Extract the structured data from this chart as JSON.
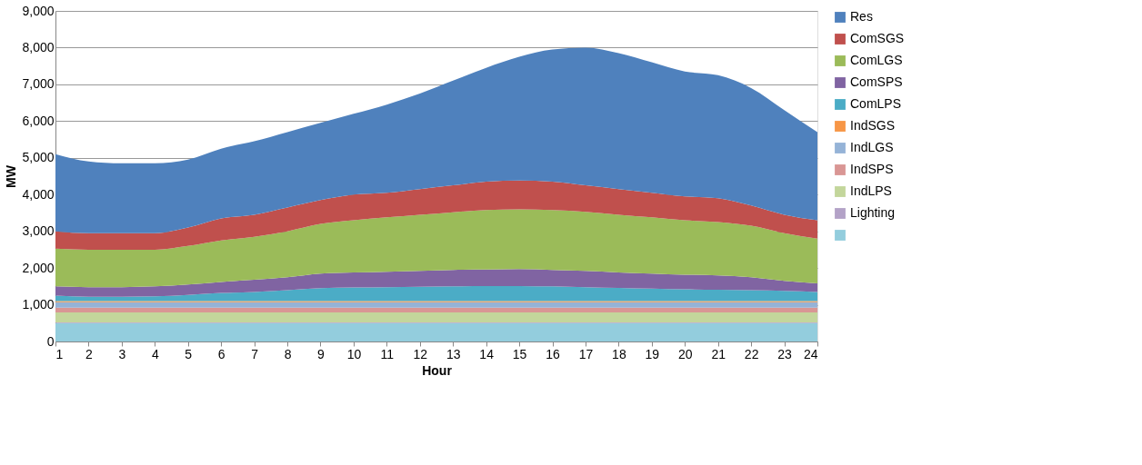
{
  "chart_data": {
    "type": "area",
    "stacked": true,
    "xlabel": "Hour",
    "ylabel": "MW",
    "x": [
      1,
      2,
      3,
      4,
      5,
      6,
      7,
      8,
      9,
      10,
      11,
      12,
      13,
      14,
      15,
      16,
      17,
      18,
      19,
      20,
      21,
      22,
      23,
      24
    ],
    "xlim": [
      1,
      24
    ],
    "xticks": [
      1,
      2,
      3,
      4,
      5,
      6,
      7,
      8,
      9,
      10,
      11,
      12,
      13,
      14,
      15,
      16,
      17,
      18,
      19,
      20,
      21,
      22,
      23,
      24
    ],
    "ylim": [
      0,
      9000
    ],
    "yticks": [
      0,
      {
        "value": 1000,
        "label": "1,000"
      },
      {
        "value": 2000,
        "label": "2,000"
      },
      {
        "value": 3000,
        "label": "3,000"
      },
      {
        "value": 4000,
        "label": "4,000"
      },
      {
        "value": 5000,
        "label": "5,000"
      },
      {
        "value": 6000,
        "label": "6,000"
      },
      {
        "value": 7000,
        "label": "7,000"
      },
      {
        "value": 8000,
        "label": "8,000"
      },
      {
        "value": 9000,
        "label": "9,000"
      }
    ],
    "grid": "y",
    "legend": "right",
    "series": [
      {
        "color": "#93cddd",
        "values": [
          500,
          500,
          500,
          500,
          500,
          500,
          500,
          500,
          500,
          500,
          500,
          500,
          500,
          500,
          500,
          500,
          500,
          500,
          500,
          500,
          500,
          500,
          500,
          500
        ]
      },
      {
        "name": "Lighting",
        "color": "#b3a2c7",
        "values": [
          20,
          20,
          20,
          20,
          20,
          20,
          20,
          20,
          20,
          20,
          20,
          20,
          20,
          20,
          20,
          20,
          20,
          20,
          20,
          20,
          20,
          20,
          20,
          20
        ]
      },
      {
        "name": "IndLPS",
        "color": "#c3d69b",
        "values": [
          270,
          270,
          270,
          270,
          270,
          270,
          270,
          270,
          270,
          270,
          270,
          270,
          270,
          270,
          270,
          270,
          270,
          270,
          270,
          270,
          270,
          270,
          270,
          270
        ]
      },
      {
        "name": "IndSPS",
        "color": "#d99694",
        "values": [
          130,
          130,
          130,
          130,
          130,
          130,
          130,
          130,
          130,
          130,
          130,
          130,
          130,
          130,
          130,
          130,
          130,
          130,
          130,
          130,
          130,
          130,
          130,
          130
        ]
      },
      {
        "name": "IndLGS",
        "color": "#95b3d7",
        "values": [
          150,
          150,
          150,
          150,
          150,
          150,
          150,
          150,
          150,
          150,
          150,
          150,
          150,
          150,
          150,
          150,
          150,
          150,
          150,
          150,
          150,
          150,
          150,
          150
        ]
      },
      {
        "name": "IndSGS",
        "color": "#f79646",
        "values": [
          30,
          30,
          30,
          30,
          30,
          30,
          30,
          30,
          30,
          30,
          30,
          30,
          30,
          30,
          30,
          30,
          30,
          30,
          30,
          30,
          30,
          30,
          30,
          30
        ]
      },
      {
        "name": "ComLPS",
        "color": "#4bacc6",
        "values": [
          150,
          120,
          120,
          130,
          170,
          220,
          250,
          300,
          350,
          370,
          380,
          390,
          400,
          410,
          410,
          400,
          380,
          360,
          340,
          320,
          310,
          300,
          280,
          250
        ]
      },
      {
        "name": "ComSPS",
        "color": "#8064a2",
        "values": [
          250,
          260,
          260,
          270,
          280,
          300,
          330,
          350,
          400,
          410,
          420,
          430,
          450,
          450,
          460,
          450,
          440,
          420,
          410,
          400,
          390,
          350,
          270,
          230
        ]
      },
      {
        "name": "ComLGS",
        "color": "#9bbb59",
        "values": [
          1030,
          1020,
          1020,
          1000,
          1050,
          1130,
          1170,
          1250,
          1350,
          1420,
          1480,
          1530,
          1570,
          1620,
          1630,
          1630,
          1610,
          1570,
          1530,
          1480,
          1450,
          1400,
          1300,
          1220
        ]
      },
      {
        "name": "ComSGS",
        "color": "#c0504d",
        "values": [
          470,
          450,
          450,
          450,
          500,
          600,
          600,
          650,
          650,
          700,
          670,
          700,
          730,
          770,
          780,
          770,
          720,
          700,
          670,
          650,
          650,
          550,
          500,
          500
        ]
      },
      {
        "name": "Res",
        "color": "#4f81bd",
        "values": [
          2100,
          1950,
          1900,
          1900,
          1850,
          1900,
          2000,
          2050,
          2100,
          2200,
          2400,
          2600,
          2850,
          3100,
          3370,
          3600,
          3750,
          3700,
          3550,
          3400,
          3350,
          3200,
          2850,
          2400
        ]
      }
    ]
  }
}
